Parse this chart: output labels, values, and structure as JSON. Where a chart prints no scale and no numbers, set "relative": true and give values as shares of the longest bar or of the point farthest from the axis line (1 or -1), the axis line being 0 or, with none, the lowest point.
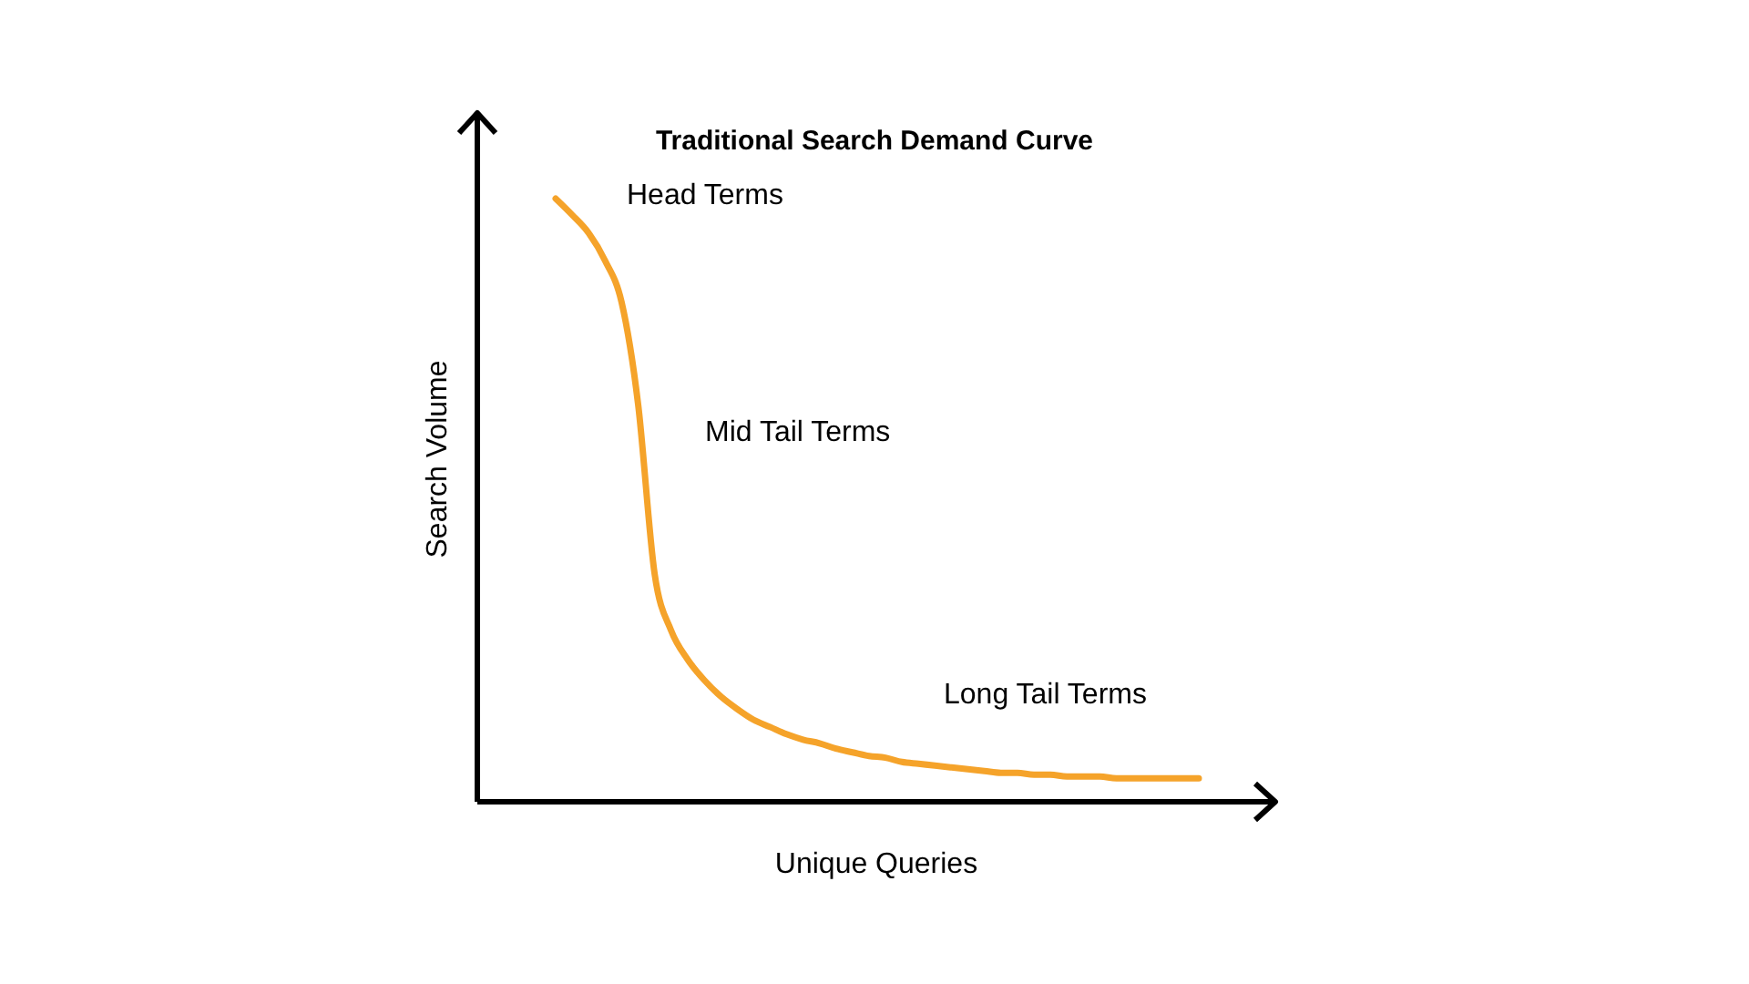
{
  "chart_data": {
    "type": "line",
    "title": "Traditional Search Demand Curve",
    "xlabel": "Unique Queries",
    "ylabel": "Search Volume",
    "relative": true,
    "marker": "none",
    "line_style": "solid",
    "categories": [
      null,
      null,
      null,
      null,
      null,
      null,
      null,
      null,
      null,
      null,
      null,
      null,
      null,
      null,
      null,
      null,
      null,
      null,
      null,
      null,
      null,
      null,
      null,
      null,
      null,
      null,
      null,
      null,
      null,
      null,
      null,
      null,
      null,
      null,
      null,
      null,
      null,
      null,
      null,
      null
    ],
    "series": [
      {
        "color": "#f5a32a",
        "values": [
          1.0,
          0.973,
          0.943,
          0.897,
          0.828,
          0.659,
          0.378,
          0.284,
          0.236,
          0.202,
          0.175,
          0.154,
          0.136,
          0.124,
          0.112,
          0.103,
          0.097,
          0.088,
          0.082,
          0.076,
          0.073,
          0.066,
          0.063,
          0.06,
          0.057,
          0.054,
          0.051,
          0.048,
          0.048,
          0.045,
          0.045,
          0.042,
          0.042,
          0.042,
          0.039,
          0.039,
          0.039,
          0.039,
          0.039,
          0.039
        ]
      }
    ],
    "annotations": [
      "Head Terms",
      "Mid Tail Terms",
      "Long Tail Terms"
    ]
  }
}
